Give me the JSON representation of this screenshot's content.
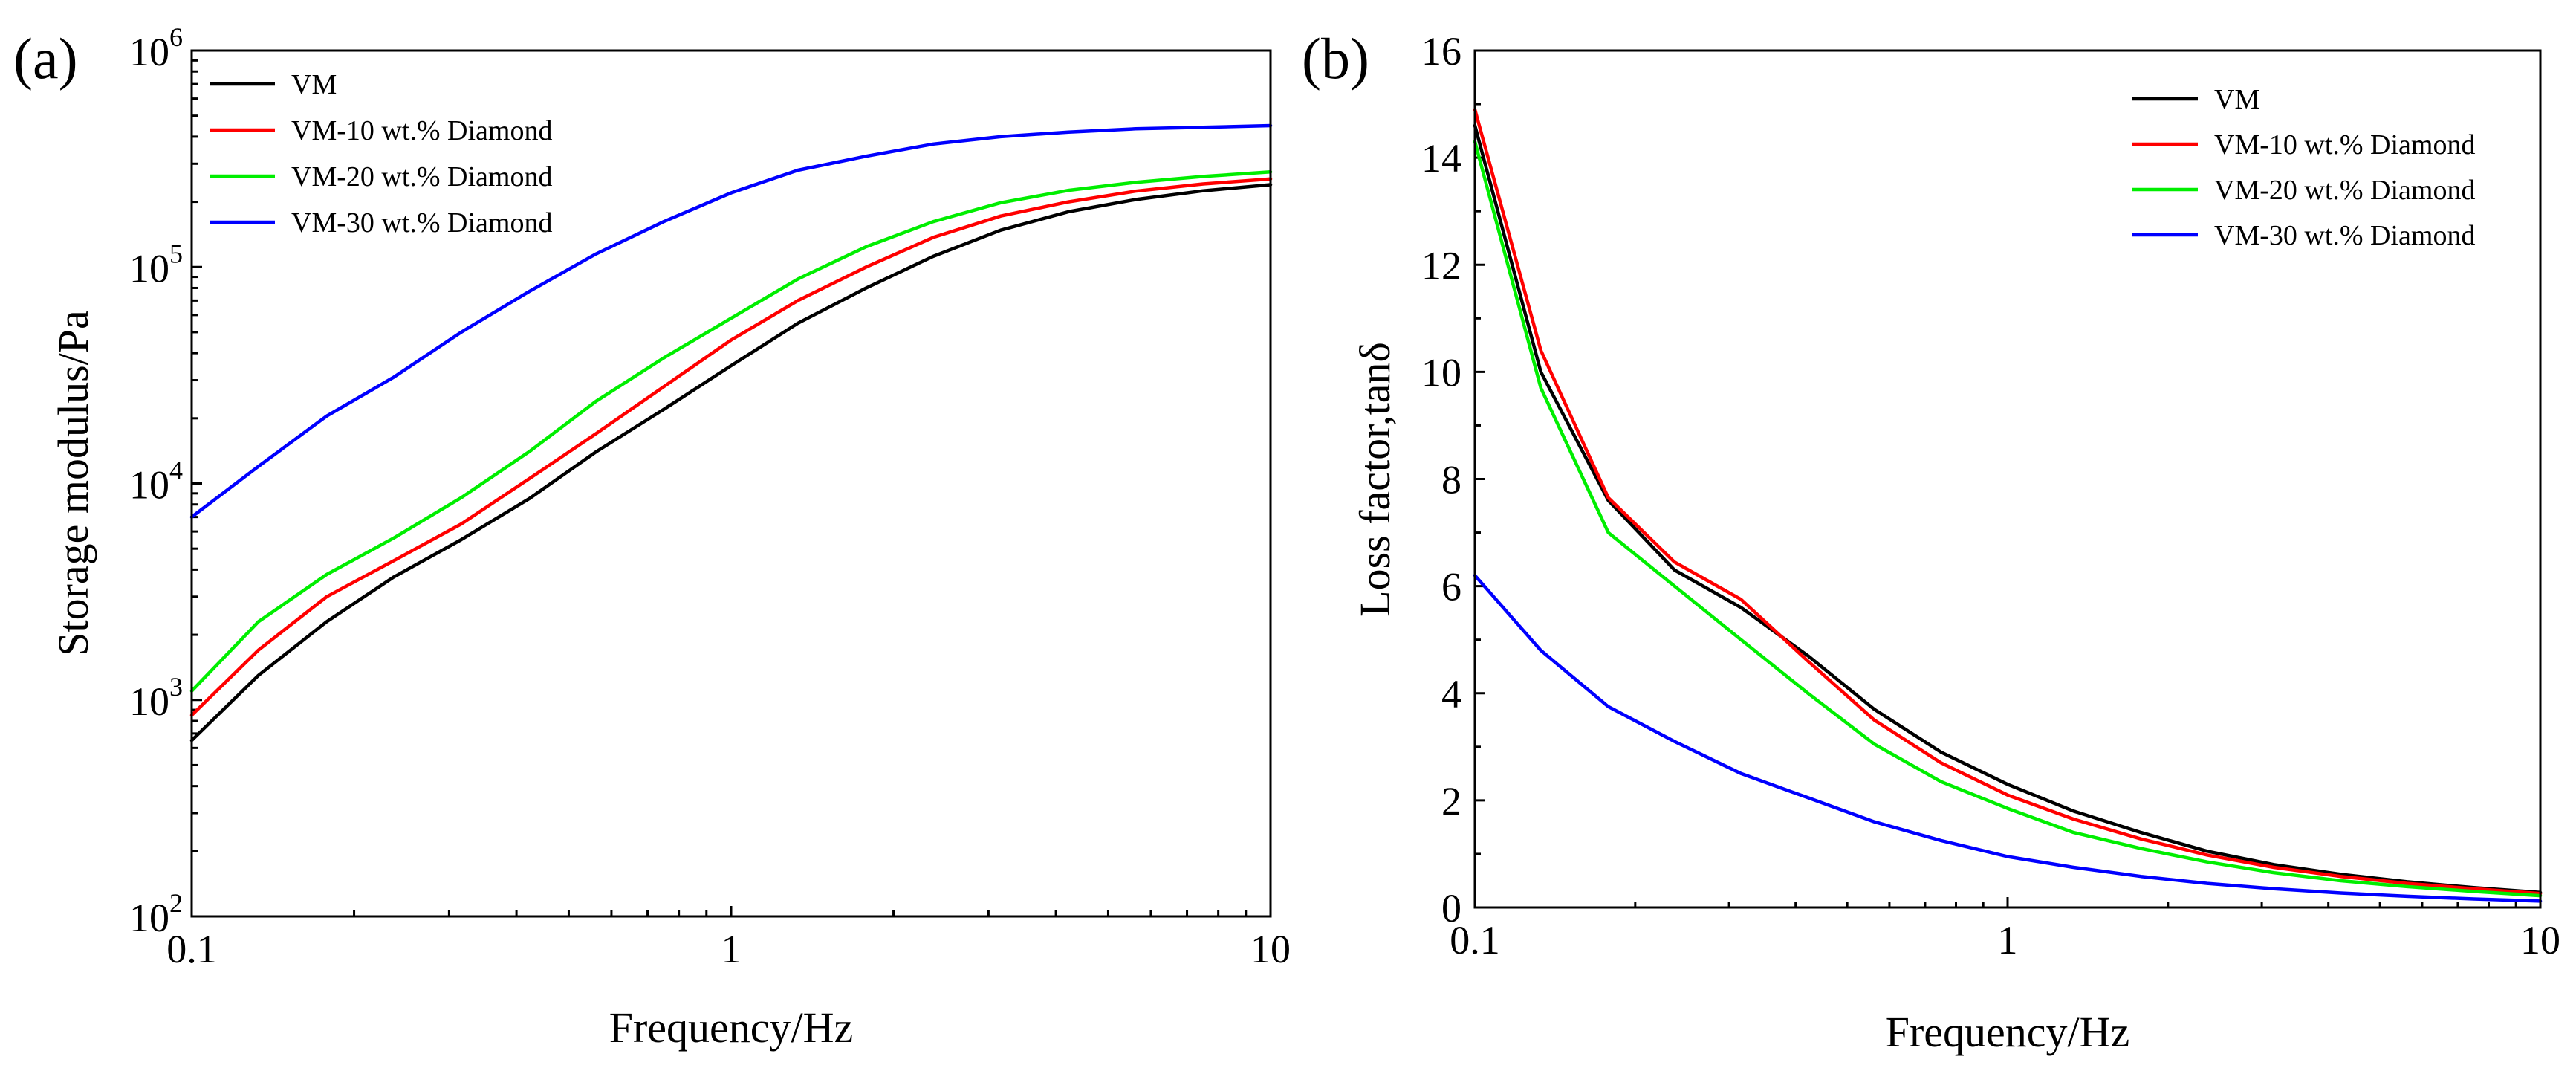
{
  "chart_data": [
    {
      "panel_label": "(a)",
      "type": "line",
      "xscale": "log",
      "yscale": "log",
      "xlabel": "Frequency/Hz",
      "ylabel": "Storage modulus/Pa",
      "xlim": [
        0.1,
        10
      ],
      "ylim": [
        100,
        1000000
      ],
      "xticks": [
        0.1,
        1,
        10
      ],
      "xtick_labels": [
        "0.1",
        "1",
        "10"
      ],
      "yticks": [
        100,
        1000,
        10000,
        100000,
        1000000
      ],
      "ytick_labels": [
        {
          "base": "10",
          "exp": "2"
        },
        {
          "base": "10",
          "exp": "3"
        },
        {
          "base": "10",
          "exp": "4"
        },
        {
          "base": "10",
          "exp": "5"
        },
        {
          "base": "10",
          "exp": "6"
        }
      ],
      "legend_position": "top-left",
      "x": [
        0.1,
        0.133,
        0.178,
        0.237,
        0.316,
        0.422,
        0.562,
        0.75,
        1.0,
        1.33,
        1.78,
        2.37,
        3.16,
        4.22,
        5.62,
        7.5,
        10
      ],
      "series": [
        {
          "name": "VM",
          "color": "#000000",
          "values": [
            650,
            1300,
            2300,
            3700,
            5500,
            8500,
            14000,
            22000,
            35000,
            55000,
            80000,
            112000,
            148000,
            180000,
            205000,
            225000,
            240000
          ]
        },
        {
          "name": "VM-10 wt.% Diamond",
          "color": "#ff0000",
          "values": [
            850,
            1700,
            3000,
            4400,
            6500,
            10500,
            17000,
            28000,
            46000,
            70000,
            100000,
            137000,
            172000,
            200000,
            224000,
            242000,
            255000
          ]
        },
        {
          "name": "VM-20 wt.% Diamond",
          "color": "#00ee00",
          "values": [
            1100,
            2300,
            3800,
            5600,
            8600,
            14000,
            24000,
            38000,
            58000,
            88000,
            124000,
            162000,
            198000,
            226000,
            246000,
            262000,
            275000
          ]
        },
        {
          "name": "VM-30 wt.% Diamond",
          "color": "#0000ff",
          "values": [
            7000,
            12000,
            20500,
            31000,
            50000,
            77000,
            115000,
            162000,
            220000,
            280000,
            325000,
            370000,
            400000,
            420000,
            435000,
            442000,
            450000
          ]
        }
      ]
    },
    {
      "panel_label": "(b)",
      "type": "line",
      "xscale": "log",
      "yscale": "linear",
      "xlabel": "Frequency/Hz",
      "ylabel": "Loss factor,tanδ",
      "xlim": [
        0.1,
        10
      ],
      "ylim": [
        0,
        16
      ],
      "xticks": [
        0.1,
        1,
        10
      ],
      "xtick_labels": [
        "0.1",
        "1",
        "10"
      ],
      "yticks": [
        0,
        2,
        4,
        6,
        8,
        10,
        12,
        14,
        16
      ],
      "ytick_labels": [
        "0",
        "2",
        "4",
        "6",
        "8",
        "10",
        "12",
        "14",
        "16"
      ],
      "legend_position": "top-right",
      "x": [
        0.1,
        0.133,
        0.178,
        0.237,
        0.316,
        0.422,
        0.562,
        0.75,
        1.0,
        1.33,
        1.78,
        2.37,
        3.16,
        4.22,
        5.62,
        7.5,
        10
      ],
      "series": [
        {
          "name": "VM",
          "color": "#000000",
          "values": [
            14.6,
            10.0,
            7.6,
            6.3,
            5.6,
            4.7,
            3.7,
            2.9,
            2.3,
            1.8,
            1.4,
            1.05,
            0.8,
            0.62,
            0.48,
            0.37,
            0.28
          ]
        },
        {
          "name": "VM-10 wt.% Diamond",
          "color": "#ff0000",
          "values": [
            14.9,
            10.4,
            7.65,
            6.45,
            5.75,
            4.6,
            3.5,
            2.7,
            2.1,
            1.65,
            1.28,
            0.98,
            0.75,
            0.58,
            0.45,
            0.35,
            0.26
          ]
        },
        {
          "name": "VM-20 wt.% Diamond",
          "color": "#00ee00",
          "values": [
            14.3,
            9.7,
            7.0,
            6.0,
            5.0,
            4.0,
            3.05,
            2.35,
            1.85,
            1.4,
            1.1,
            0.85,
            0.65,
            0.5,
            0.39,
            0.3,
            0.22
          ]
        },
        {
          "name": "VM-30 wt.% Diamond",
          "color": "#0000ff",
          "values": [
            6.2,
            4.8,
            3.75,
            3.1,
            2.5,
            2.05,
            1.6,
            1.25,
            0.95,
            0.75,
            0.58,
            0.45,
            0.35,
            0.27,
            0.21,
            0.16,
            0.12
          ]
        }
      ]
    }
  ]
}
